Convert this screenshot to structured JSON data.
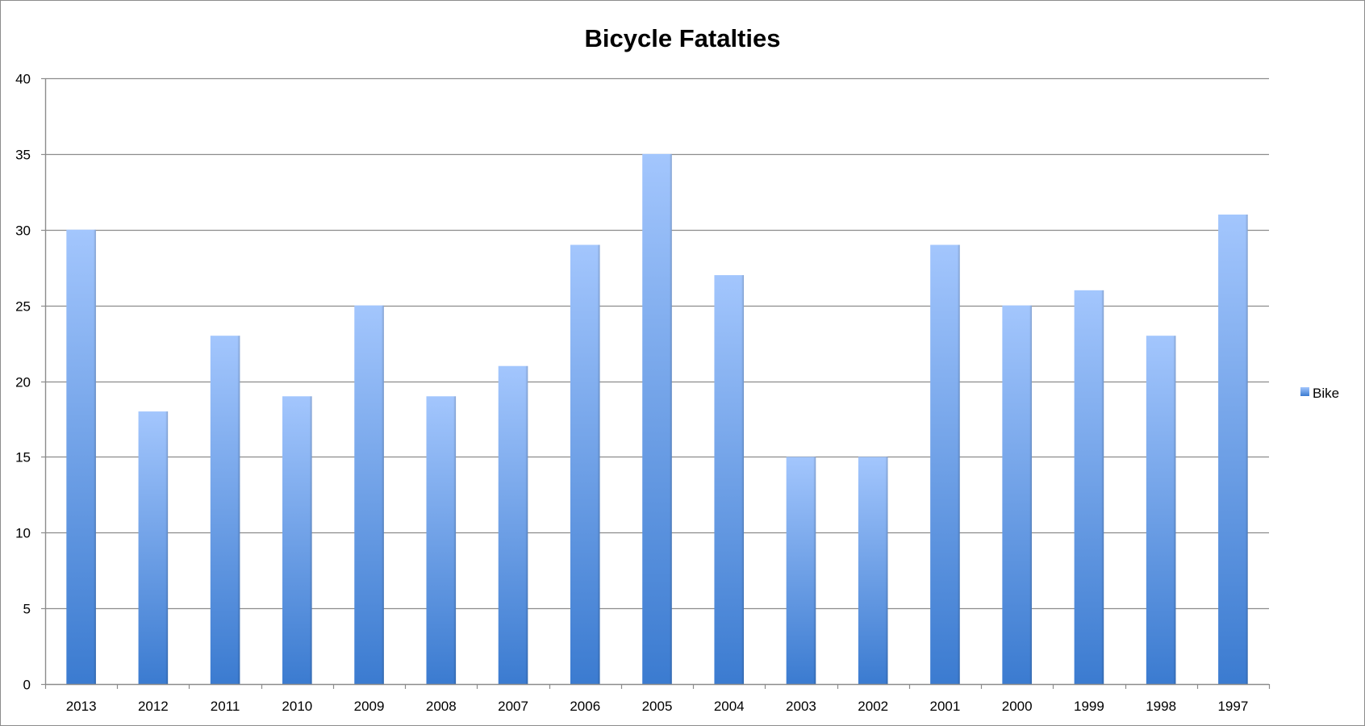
{
  "chart_data": {
    "type": "bar",
    "title": "Bicycle Fatalties",
    "xlabel": "",
    "ylabel": "",
    "categories": [
      "2013",
      "2012",
      "2011",
      "2010",
      "2009",
      "2008",
      "2007",
      "2006",
      "2005",
      "2004",
      "2003",
      "2002",
      "2001",
      "2000",
      "1999",
      "1998",
      "1997"
    ],
    "series": [
      {
        "name": "Bike",
        "values": [
          30,
          18,
          23,
          19,
          25,
          19,
          21,
          29,
          35,
          27,
          15,
          15,
          29,
          25,
          26,
          23,
          31
        ]
      }
    ],
    "ylim": [
      0,
      40
    ],
    "yticks": [
      "0",
      "5",
      "10",
      "15",
      "20",
      "25",
      "30",
      "35",
      "40"
    ],
    "grid": true,
    "legend_position": "right",
    "colors": {
      "bar_top": "#a3c6fd",
      "bar_bottom": "#3b7bd0",
      "gridline": "#8c8c8c",
      "axis": "#8c8c8c"
    }
  }
}
